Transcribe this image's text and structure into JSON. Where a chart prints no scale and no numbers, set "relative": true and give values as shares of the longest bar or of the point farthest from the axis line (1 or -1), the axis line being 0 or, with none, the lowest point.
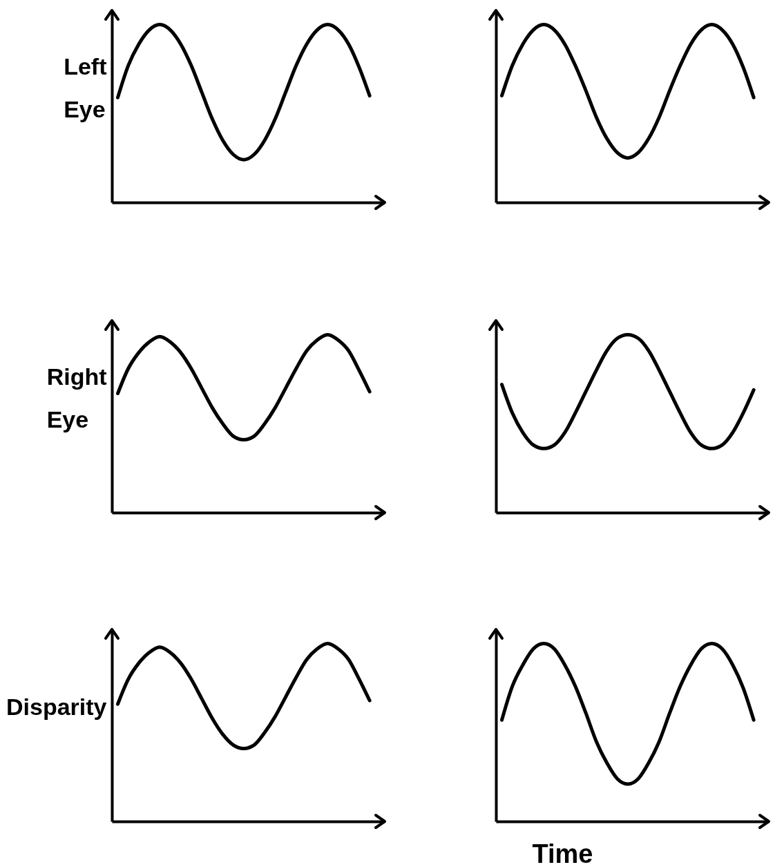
{
  "chart_data": [
    {
      "type": "line",
      "ylabel": "Left Eye",
      "relative": true,
      "categories": [
        null,
        null,
        null,
        null,
        null,
        null,
        null,
        null,
        null,
        null,
        null,
        null,
        null,
        null,
        null,
        null,
        null,
        null,
        null,
        null,
        null,
        null,
        null,
        null,
        null
      ],
      "series": [
        {
          "color": "#000000",
          "values": [
            0.59,
            0.77,
            0.89,
            0.97,
            1.0,
            0.97,
            0.89,
            0.77,
            0.62,
            0.47,
            0.35,
            0.27,
            0.24,
            0.27,
            0.35,
            0.47,
            0.62,
            0.77,
            0.89,
            0.97,
            1.0,
            0.97,
            0.89,
            0.76,
            0.6
          ]
        }
      ]
    },
    {
      "type": "line",
      "relative": true,
      "categories": [
        null,
        null,
        null,
        null,
        null,
        null,
        null,
        null,
        null,
        null,
        null,
        null,
        null,
        null,
        null,
        null,
        null,
        null,
        null,
        null,
        null,
        null,
        null,
        null,
        null
      ],
      "series": [
        {
          "color": "#000000",
          "values": [
            0.6,
            0.77,
            0.89,
            0.97,
            1.0,
            0.97,
            0.89,
            0.77,
            0.63,
            0.48,
            0.36,
            0.28,
            0.25,
            0.28,
            0.36,
            0.48,
            0.63,
            0.77,
            0.89,
            0.97,
            1.0,
            0.97,
            0.89,
            0.76,
            0.59
          ]
        }
      ]
    },
    {
      "type": "line",
      "ylabel": "Right Eye",
      "relative": true,
      "categories": [
        null,
        null,
        null,
        null,
        null,
        null,
        null,
        null,
        null,
        null,
        null,
        null,
        null,
        null,
        null,
        null,
        null,
        null,
        null,
        null,
        null,
        null,
        null,
        null,
        null
      ],
      "series": [
        {
          "color": "#000000",
          "values": [
            0.67,
            0.81,
            0.9,
            0.96,
            0.99,
            0.96,
            0.9,
            0.81,
            0.7,
            0.59,
            0.5,
            0.43,
            0.41,
            0.43,
            0.5,
            0.59,
            0.7,
            0.81,
            0.91,
            0.97,
            1.0,
            0.97,
            0.91,
            0.8,
            0.68
          ]
        }
      ]
    },
    {
      "type": "line",
      "relative": true,
      "categories": [
        null,
        null,
        null,
        null,
        null,
        null,
        null,
        null,
        null,
        null,
        null,
        null,
        null,
        null,
        null,
        null,
        null,
        null,
        null,
        null,
        null,
        null,
        null,
        null,
        null
      ],
      "series": [
        {
          "color": "#000000",
          "values": [
            0.72,
            0.56,
            0.45,
            0.38,
            0.36,
            0.38,
            0.45,
            0.56,
            0.68,
            0.8,
            0.91,
            0.98,
            1.0,
            0.98,
            0.91,
            0.8,
            0.68,
            0.56,
            0.45,
            0.38,
            0.36,
            0.38,
            0.45,
            0.56,
            0.69
          ]
        }
      ]
    },
    {
      "type": "line",
      "ylabel": "Disparity",
      "relative": true,
      "categories": [
        null,
        null,
        null,
        null,
        null,
        null,
        null,
        null,
        null,
        null,
        null,
        null,
        null,
        null,
        null,
        null,
        null,
        null,
        null,
        null,
        null,
        null,
        null,
        null,
        null
      ],
      "series": [
        {
          "color": "#000000",
          "values": [
            0.66,
            0.8,
            0.89,
            0.95,
            0.98,
            0.95,
            0.89,
            0.8,
            0.69,
            0.58,
            0.49,
            0.43,
            0.41,
            0.43,
            0.5,
            0.59,
            0.7,
            0.81,
            0.91,
            0.97,
            1.0,
            0.97,
            0.91,
            0.8,
            0.68
          ]
        }
      ]
    },
    {
      "type": "line",
      "xlabel": "Time",
      "relative": true,
      "categories": [
        null,
        null,
        null,
        null,
        null,
        null,
        null,
        null,
        null,
        null,
        null,
        null,
        null,
        null,
        null,
        null,
        null,
        null,
        null,
        null,
        null,
        null,
        null,
        null,
        null
      ],
      "series": [
        {
          "color": "#000000",
          "values": [
            0.57,
            0.76,
            0.88,
            0.97,
            1.0,
            0.97,
            0.88,
            0.76,
            0.61,
            0.45,
            0.33,
            0.24,
            0.21,
            0.24,
            0.33,
            0.45,
            0.61,
            0.76,
            0.88,
            0.97,
            1.0,
            0.97,
            0.88,
            0.75,
            0.57
          ]
        }
      ]
    }
  ]
}
